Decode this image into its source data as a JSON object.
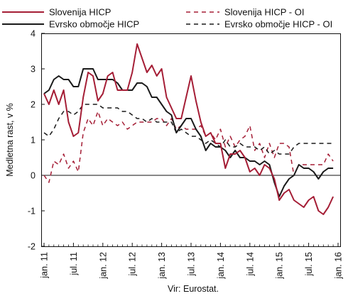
{
  "chart_data": {
    "type": "line",
    "title": "",
    "ylabel": "Medletna rast, v %",
    "xlabel": "",
    "source": "Vir: Eurostat.",
    "ylim": [
      -2,
      4
    ],
    "y_ticks": [
      "-2",
      "-1",
      "0",
      "1",
      "2",
      "3",
      "4"
    ],
    "x_start": "jan. 11",
    "x_tick_labels": [
      "jan. 11",
      "jul. 11",
      "jan. 12",
      "jul. 12",
      "jan. 13",
      "jul. 13",
      "jan. 14",
      "jul. 14",
      "jan. 15",
      "jul. 15",
      "jan. 16"
    ],
    "grid": false,
    "legend_position": "top",
    "colors": {
      "slovenia": "#a51e36",
      "euro": "#1a1a1a"
    },
    "series": [
      {
        "name": "Slovenija HICP",
        "color": "#a51e36",
        "dash": "solid",
        "values": [
          2.3,
          2.0,
          2.4,
          2.0,
          2.4,
          1.5,
          1.1,
          1.2,
          2.2,
          2.9,
          2.8,
          2.1,
          2.3,
          2.8,
          2.9,
          2.4,
          2.4,
          2.4,
          2.9,
          3.7,
          3.3,
          2.9,
          3.1,
          2.8,
          3.0,
          2.2,
          1.9,
          1.6,
          1.6,
          2.2,
          2.8,
          2.1,
          1.5,
          1.1,
          1.2,
          0.9,
          0.9,
          0.2,
          0.6,
          0.6,
          0.7,
          0.5,
          0.1,
          0.2,
          0.0,
          0.3,
          0.2,
          -0.1,
          -0.7,
          -0.5,
          -0.4,
          -0.7,
          -0.8,
          -0.9,
          -0.7,
          -0.6,
          -1.0,
          -1.1,
          -0.9,
          -0.6
        ]
      },
      {
        "name": "Slovenija HICP - OI",
        "color": "#a51e36",
        "dash": "dashed",
        "values": [
          0.0,
          -0.2,
          0.4,
          0.3,
          0.6,
          0.2,
          0.4,
          0.1,
          1.2,
          1.6,
          1.4,
          1.8,
          1.4,
          1.6,
          1.5,
          1.4,
          1.5,
          1.3,
          1.4,
          1.5,
          1.5,
          1.5,
          1.5,
          1.6,
          1.6,
          1.4,
          1.6,
          1.3,
          1.4,
          1.3,
          1.3,
          1.3,
          1.4,
          1.1,
          1.2,
          1.0,
          1.3,
          0.8,
          1.1,
          0.8,
          1.0,
          1.1,
          1.4,
          0.7,
          0.9,
          0.5,
          0.9,
          0.5,
          0.9,
          0.9,
          0.8,
          0.0,
          0.3,
          0.3,
          0.3,
          0.3,
          0.3,
          0.3,
          0.6,
          0.4
        ]
      },
      {
        "name": "Evrsko območje HICP",
        "color": "#1a1a1a",
        "dash": "solid",
        "values": [
          2.3,
          2.4,
          2.7,
          2.8,
          2.7,
          2.7,
          2.5,
          2.5,
          3.0,
          3.0,
          3.0,
          2.7,
          2.7,
          2.7,
          2.7,
          2.6,
          2.4,
          2.4,
          2.4,
          2.6,
          2.6,
          2.5,
          2.2,
          2.2,
          2.0,
          1.8,
          1.7,
          1.2,
          1.4,
          1.6,
          1.6,
          1.3,
          1.1,
          0.7,
          0.9,
          0.8,
          0.8,
          0.7,
          0.5,
          0.7,
          0.5,
          0.5,
          0.4,
          0.4,
          0.3,
          0.4,
          0.3,
          -0.2,
          -0.6,
          -0.3,
          -0.1,
          0.0,
          0.3,
          0.2,
          0.2,
          0.1,
          -0.1,
          0.1,
          0.2,
          0.2
        ]
      },
      {
        "name": "Evrsko območje HICP - OI",
        "color": "#1a1a1a",
        "dash": "dashed",
        "values": [
          1.2,
          1.1,
          1.3,
          1.6,
          1.8,
          1.8,
          1.7,
          1.8,
          2.0,
          2.0,
          2.0,
          2.0,
          1.9,
          1.9,
          1.9,
          1.9,
          1.8,
          1.8,
          1.7,
          1.6,
          1.6,
          1.5,
          1.6,
          1.5,
          1.5,
          1.5,
          1.5,
          1.2,
          1.3,
          1.2,
          1.1,
          1.1,
          1.0,
          0.9,
          1.0,
          0.9,
          0.8,
          1.0,
          0.8,
          0.8,
          0.9,
          0.8,
          0.8,
          0.8,
          0.7,
          0.8,
          0.6,
          0.7,
          0.6,
          0.6,
          0.6,
          0.8,
          0.9,
          0.9,
          0.9,
          0.9,
          0.9,
          0.9,
          0.9,
          0.9
        ]
      }
    ]
  }
}
